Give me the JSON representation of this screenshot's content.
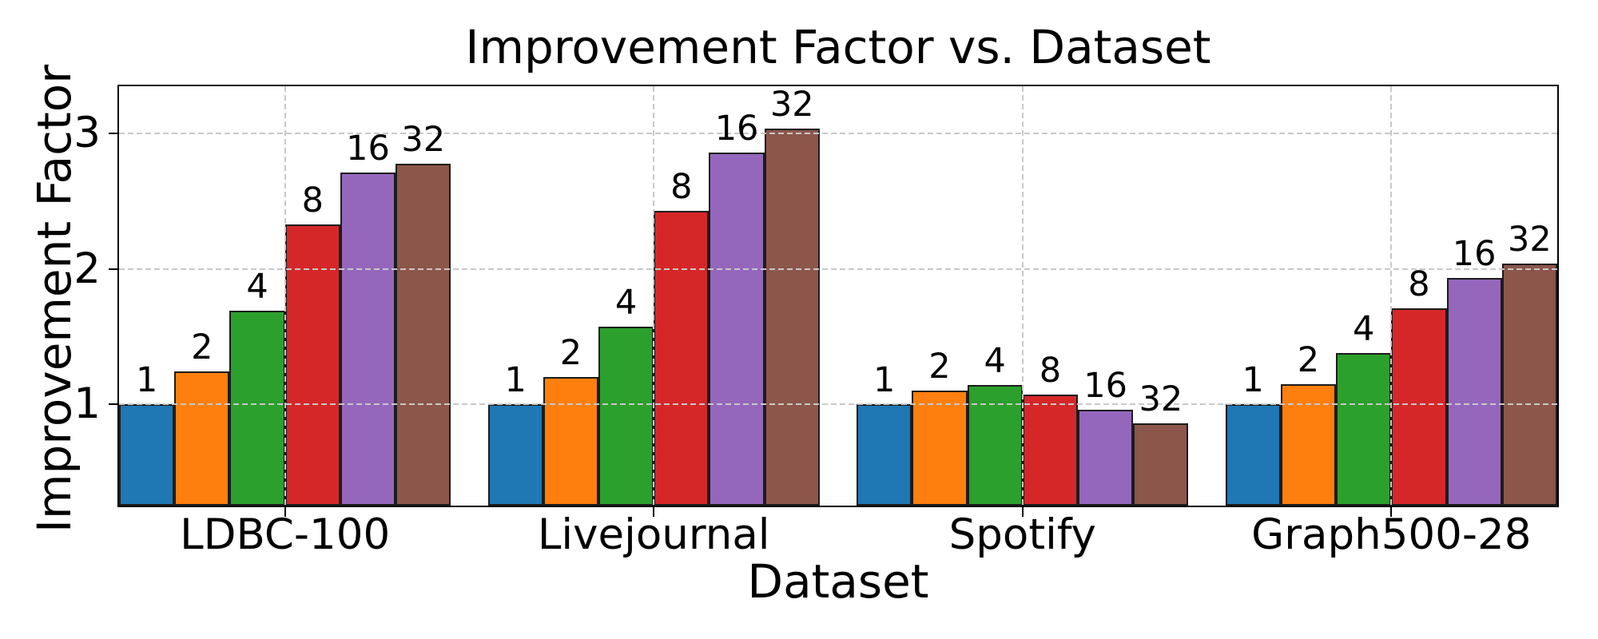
{
  "title": "Improvement Factor vs. Dataset",
  "chart_data": {
    "type": "bar",
    "title": "Improvement Factor vs. Dataset",
    "xlabel": "Dataset",
    "ylabel": "Improvement Factor",
    "categories": [
      "LDBC-100",
      "Livejournal",
      "Spotify",
      "Graph500-28"
    ],
    "series": [
      {
        "name": "1",
        "color": "#1f77b4",
        "values": [
          1.0,
          1.0,
          1.0,
          1.0
        ]
      },
      {
        "name": "2",
        "color": "#ff7f0e",
        "values": [
          1.24,
          1.2,
          1.1,
          1.15
        ]
      },
      {
        "name": "4",
        "color": "#2ca02c",
        "values": [
          1.69,
          1.57,
          1.14,
          1.38
        ]
      },
      {
        "name": "8",
        "color": "#d62728",
        "values": [
          2.33,
          2.43,
          1.07,
          1.71
        ]
      },
      {
        "name": "16",
        "color": "#9467bd",
        "values": [
          2.71,
          2.86,
          0.96,
          1.93
        ]
      },
      {
        "name": "32",
        "color": "#8c564b",
        "values": [
          2.78,
          3.04,
          0.86,
          2.04
        ]
      }
    ],
    "bar_labels": "series_name_above_each_bar",
    "yticks": [
      1,
      2,
      3
    ],
    "ylim": [
      0.25,
      3.35
    ],
    "grid": {
      "horizontal": true,
      "vertical": true,
      "style": "dashed",
      "color": "#c9c9c9"
    },
    "legend": "none",
    "bar_edge_color": "#1c1c1c"
  }
}
